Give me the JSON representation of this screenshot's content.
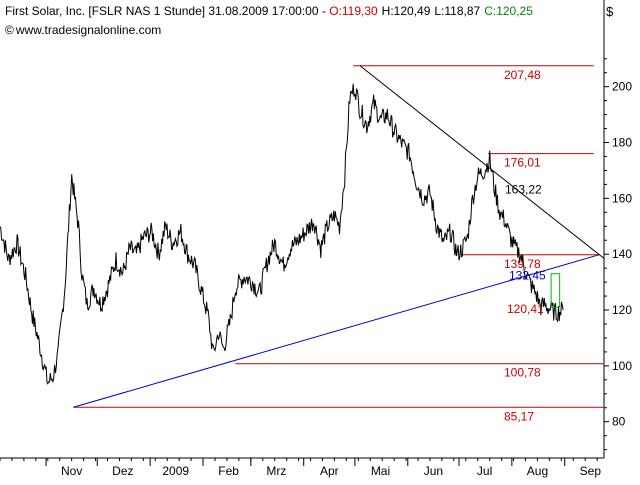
{
  "header": {
    "instrument": "First Solar, Inc. [FSLR NAS  1 Stunde] 31.08.2009 17:00:00 - ",
    "open": "O:119,30",
    "high": "H:120,49",
    "low": "L:118,87",
    "close": "C:120,25",
    "watermark": "www.tradesignalonline.com",
    "currency_symbol": "$"
  },
  "colors": {
    "open": "#cc0000",
    "close": "#008800",
    "price": "#000000",
    "level_line": "#cc0000",
    "level_label": "#cc0000",
    "support_trend": "#0000cc",
    "resistance_trend": "#000000",
    "box": "#00bb00",
    "target_label": "#0000cc"
  },
  "chart_data": {
    "type": "line",
    "title": "",
    "xlabel": "",
    "ylabel": "",
    "ylim": [
      67,
      216
    ],
    "y_ticks": [
      80,
      100,
      120,
      140,
      160,
      180,
      200
    ],
    "y_tick_labels": [
      "80",
      "100",
      "120",
      "140",
      "160",
      "180",
      "200"
    ],
    "x_tick_labels": [
      "Nov",
      "Dez",
      "2009",
      "Feb",
      "Mrz",
      "Apr",
      "Mai",
      "Jun",
      "Jul",
      "Aug",
      "Sep"
    ],
    "x_tick_dates": [
      "2008-11-01",
      "2008-12-01",
      "2009-01-01",
      "2009-02-01",
      "2009-03-01",
      "2009-04-01",
      "2009-05-01",
      "2009-06-01",
      "2009-07-01",
      "2009-08-01",
      "2009-09-01"
    ],
    "x_range": [
      "2008-10-05",
      "2009-09-24"
    ],
    "grid": false,
    "price_series": {
      "name": "FSLR",
      "x": [
        "2008-10-05",
        "2008-10-10",
        "2008-10-15",
        "2008-10-20",
        "2008-10-24",
        "2008-10-28",
        "2008-11-02",
        "2008-11-05",
        "2008-11-08",
        "2008-11-12",
        "2008-11-16",
        "2008-11-20",
        "2008-11-22",
        "2008-11-25",
        "2008-11-29",
        "2008-12-03",
        "2008-12-07",
        "2008-12-12",
        "2008-12-16",
        "2008-12-20",
        "2008-12-24",
        "2008-12-28",
        "2009-01-02",
        "2009-01-06",
        "2009-01-10",
        "2009-01-14",
        "2009-01-19",
        "2009-01-23",
        "2009-01-27",
        "2009-01-31",
        "2009-02-04",
        "2009-02-07",
        "2009-02-10",
        "2009-02-13",
        "2009-02-17",
        "2009-02-20",
        "2009-02-25",
        "2009-03-02",
        "2009-03-06",
        "2009-03-11",
        "2009-03-15",
        "2009-03-20",
        "2009-03-24",
        "2009-03-29",
        "2009-04-02",
        "2009-04-07",
        "2009-04-11",
        "2009-04-15",
        "2009-04-19",
        "2009-04-22",
        "2009-04-25",
        "2009-04-28",
        "2009-05-01",
        "2009-05-04",
        "2009-05-08",
        "2009-05-12",
        "2009-05-16",
        "2009-05-20",
        "2009-05-24",
        "2009-05-28",
        "2009-06-02",
        "2009-06-06",
        "2009-06-10",
        "2009-06-14",
        "2009-06-18",
        "2009-06-22",
        "2009-06-26",
        "2009-06-30",
        "2009-07-03",
        "2009-07-06",
        "2009-07-09",
        "2009-07-12",
        "2009-07-16",
        "2009-07-19",
        "2009-07-22",
        "2009-07-25",
        "2009-07-28",
        "2009-07-31",
        "2009-08-03",
        "2009-08-06",
        "2009-08-10",
        "2009-08-13",
        "2009-08-15",
        "2009-08-18",
        "2009-08-20",
        "2009-08-24",
        "2009-08-27",
        "2009-08-31"
      ],
      "y": [
        150,
        138,
        144,
        132,
        118,
        108,
        94,
        96,
        104,
        128,
        168,
        150,
        133,
        122,
        128,
        122,
        128,
        138,
        133,
        142,
        140,
        146,
        148,
        140,
        150,
        144,
        148,
        140,
        136,
        127,
        118,
        104,
        112,
        106,
        116,
        128,
        132,
        130,
        126,
        138,
        144,
        136,
        142,
        145,
        148,
        152,
        142,
        150,
        154,
        150,
        168,
        196,
        200,
        192,
        186,
        194,
        188,
        190,
        184,
        180,
        176,
        166,
        160,
        162,
        150,
        144,
        148,
        140,
        142,
        146,
        160,
        168,
        170,
        174,
        163,
        155,
        152,
        146,
        142,
        140,
        132,
        128,
        126,
        121,
        122,
        120,
        119,
        120
      ]
    },
    "levels": [
      {
        "value": 207.48,
        "label": "207,48",
        "from": "2009-04-30",
        "to": "2009-09-18"
      },
      {
        "value": 176.01,
        "label": "176,01",
        "from": "2009-07-18",
        "to": "2009-09-18"
      },
      {
        "value": 139.78,
        "label": "139,78",
        "from": "2009-07-03",
        "to": "2009-09-21"
      },
      {
        "value": 100.78,
        "label": "100,78",
        "from": "2009-02-20",
        "to": "2009-09-24"
      },
      {
        "value": 85.17,
        "label": "85,17",
        "from": "2008-11-17",
        "to": "2009-09-24"
      }
    ],
    "extra_labels": [
      {
        "value": 163.22,
        "label": "163,22"
      },
      {
        "value": 132.45,
        "label": "132,45"
      },
      {
        "value": 120.41,
        "label": "120,41"
      }
    ],
    "trendlines": [
      {
        "role": "support",
        "from": {
          "x": "2008-11-17",
          "y": 85.17
        },
        "to": {
          "x": "2009-09-21",
          "y": 139.78
        }
      },
      {
        "role": "resistance",
        "from": {
          "x": "2009-05-04",
          "y": 207.48
        },
        "to": {
          "x": "2009-09-24",
          "y": 138.5
        }
      }
    ],
    "target_box": {
      "from": "2009-08-24",
      "to": "2009-08-29",
      "top": 133,
      "bottom": 121
    }
  }
}
